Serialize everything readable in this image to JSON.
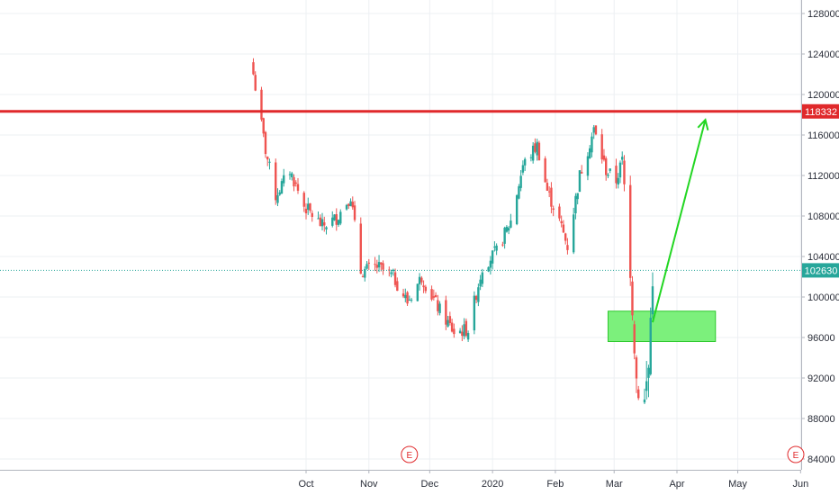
{
  "chart_data": {
    "type": "candlestick",
    "x_axis": {
      "tick_labels": [
        "Oct",
        "Nov",
        "Dec",
        "2020",
        "Feb",
        "Mar",
        "Apr",
        "May",
        "Jun"
      ]
    },
    "y_axis": {
      "tick_labels": [
        "128000",
        "124000",
        "120000",
        "116000",
        "112000",
        "108000",
        "104000",
        "100000",
        "96000",
        "92000",
        "88000",
        "84000"
      ],
      "ylim": [
        83000,
        129000
      ]
    },
    "grid": true,
    "colors": {
      "up": "#26a69a",
      "down": "#ef5350",
      "resistance": "#e0292b",
      "current_price": "#26a69a",
      "arrow": "#22d622",
      "zone_fill": "#7cf07c",
      "zone_border": "#2ec92e",
      "grid": "#edf0f3"
    },
    "resistance_level": {
      "value": 118332,
      "label": "118332"
    },
    "current_price": {
      "value": 102630,
      "label": "102630"
    },
    "support_zone": {
      "low": 95600,
      "high": 98600,
      "start": "2020-02-27",
      "end": "2020-04-20"
    },
    "projection_arrow": {
      "from": {
        "date": "2020-03-20",
        "value": 97500
      },
      "to": {
        "date": "2020-04-15",
        "value": 117500
      }
    },
    "earnings_markers": [
      {
        "date": "2019-11-21",
        "label": "E"
      },
      {
        "date": "2020-06-01",
        "label": "E"
      }
    ],
    "candle_series": {
      "start_date": "2019-09-05",
      "end_date": "2020-03-20",
      "close_path": [
        {
          "date": "2019-09-05",
          "value": 122000
        },
        {
          "date": "2019-09-11",
          "value": 114500
        },
        {
          "date": "2019-09-16",
          "value": 110000
        },
        {
          "date": "2019-09-23",
          "value": 112500
        },
        {
          "date": "2019-09-30",
          "value": 109000
        },
        {
          "date": "2019-10-09",
          "value": 107000
        },
        {
          "date": "2019-10-16",
          "value": 107800
        },
        {
          "date": "2019-10-23",
          "value": 110000
        },
        {
          "date": "2019-10-28",
          "value": 102500
        },
        {
          "date": "2019-11-05",
          "value": 103000
        },
        {
          "date": "2019-11-13",
          "value": 102000
        },
        {
          "date": "2019-11-20",
          "value": 99500
        },
        {
          "date": "2019-11-27",
          "value": 102000
        },
        {
          "date": "2019-12-05",
          "value": 99000
        },
        {
          "date": "2019-12-13",
          "value": 96500
        },
        {
          "date": "2019-12-20",
          "value": 96800
        },
        {
          "date": "2019-12-27",
          "value": 103000
        },
        {
          "date": "2020-01-03",
          "value": 104500
        },
        {
          "date": "2020-01-10",
          "value": 107500
        },
        {
          "date": "2020-01-16",
          "value": 113000
        },
        {
          "date": "2020-01-23",
          "value": 115000
        },
        {
          "date": "2020-01-28",
          "value": 110500
        },
        {
          "date": "2020-02-03",
          "value": 107500
        },
        {
          "date": "2020-02-07",
          "value": 105000
        },
        {
          "date": "2020-02-13",
          "value": 112000
        },
        {
          "date": "2020-02-20",
          "value": 116500
        },
        {
          "date": "2020-02-26",
          "value": 112500
        },
        {
          "date": "2020-03-02",
          "value": 111500
        },
        {
          "date": "2020-03-05",
          "value": 113500
        },
        {
          "date": "2020-03-09",
          "value": 103500
        },
        {
          "date": "2020-03-12",
          "value": 92000
        },
        {
          "date": "2020-03-16",
          "value": 89500
        },
        {
          "date": "2020-03-18",
          "value": 93000
        },
        {
          "date": "2020-03-20",
          "value": 102630
        }
      ]
    }
  }
}
